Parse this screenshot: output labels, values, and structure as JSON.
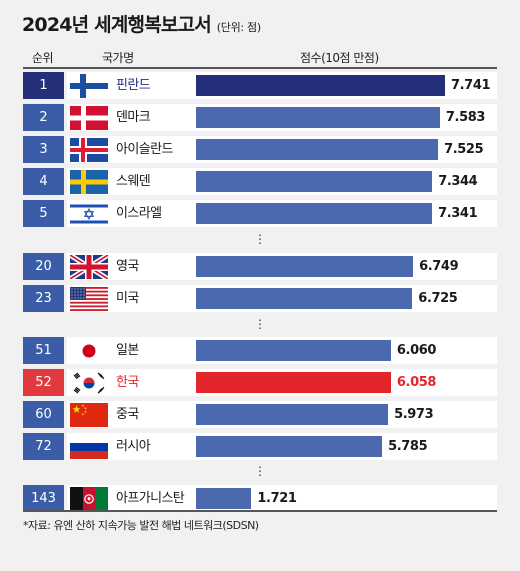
{
  "title": "2024년 세계행복보고서",
  "unit_note": "(단위: 점)",
  "headers": {
    "rank": "순위",
    "country": "국가명",
    "score": "점수(10점 만점)"
  },
  "ellipsis": "⋮",
  "source": "*자료: 유엔 산하 지속가능 발전 해법 네트워크(SDSN)",
  "colors": {
    "default_bar": "#4a69af",
    "top_bar": "#252e7b",
    "highlight": "#e2262c",
    "default_rank": "#3b5ca6",
    "top_rank": "#26307a",
    "highlight_rank": "#e03a3e"
  },
  "chart_data": {
    "type": "bar",
    "orientation": "horizontal",
    "categories": [
      "핀란드",
      "덴마크",
      "아이슬란드",
      "스웨덴",
      "이스라엘",
      "영국",
      "미국",
      "일본",
      "한국",
      "중국",
      "러시아",
      "아프가니스탄"
    ],
    "ranks": [
      "1",
      "2",
      "3",
      "4",
      "5",
      "20",
      "23",
      "51",
      "52",
      "60",
      "72",
      "143"
    ],
    "values": [
      7.741,
      7.583,
      7.525,
      7.344,
      7.341,
      6.749,
      6.725,
      6.06,
      6.058,
      5.973,
      5.785,
      1.721
    ],
    "labels": [
      "7.741",
      "7.583",
      "7.525",
      "7.344",
      "7.341",
      "6.749",
      "6.725",
      "6.060",
      "6.058",
      "5.973",
      "5.785",
      "1.721"
    ],
    "flags": [
      "finland-flag-icon",
      "denmark-flag-icon",
      "iceland-flag-icon",
      "sweden-flag-icon",
      "israel-flag-icon",
      "uk-flag-icon",
      "usa-flag-icon",
      "japan-flag-icon",
      "korea-flag-icon",
      "china-flag-icon",
      "russia-flag-icon",
      "afghanistan-flag-icon"
    ],
    "highlight": [
      "top",
      "default",
      "default",
      "default",
      "default",
      "default",
      "default",
      "default",
      "korea",
      "default",
      "default",
      "default"
    ],
    "groups": [
      [
        0,
        1,
        2,
        3,
        4
      ],
      [
        5,
        6
      ],
      [
        7,
        8,
        9,
        10
      ],
      [
        11
      ]
    ],
    "xlim": [
      0,
      10
    ]
  }
}
